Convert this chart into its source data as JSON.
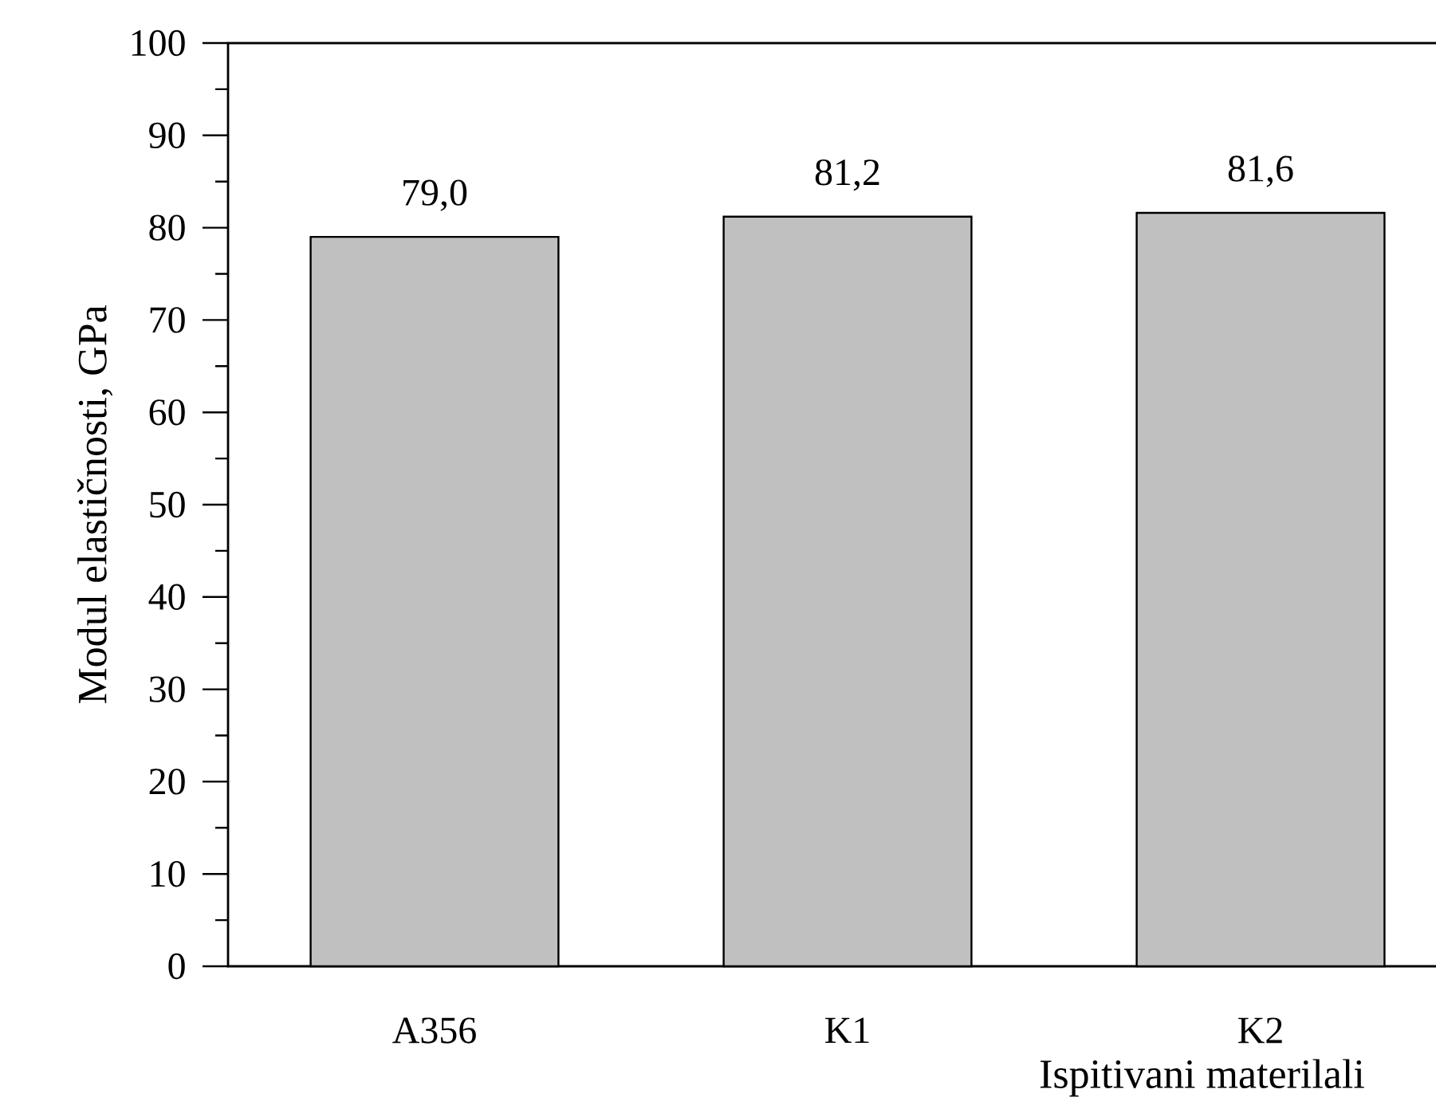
{
  "chart_data": {
    "type": "bar",
    "xlabel": "Ispitivani materilali",
    "ylabel": "Modul elastičnosti, GPa",
    "categories": [
      "A356",
      "K1",
      "K2"
    ],
    "values": [
      79.0,
      81.2,
      81.6
    ],
    "value_labels": [
      "79,0",
      "81,2",
      "81,6"
    ],
    "color": "#c0c0c0",
    "ylim": [
      0,
      100
    ],
    "yticks": [
      0,
      10,
      20,
      30,
      40,
      50,
      60,
      70,
      80,
      90,
      100
    ]
  }
}
